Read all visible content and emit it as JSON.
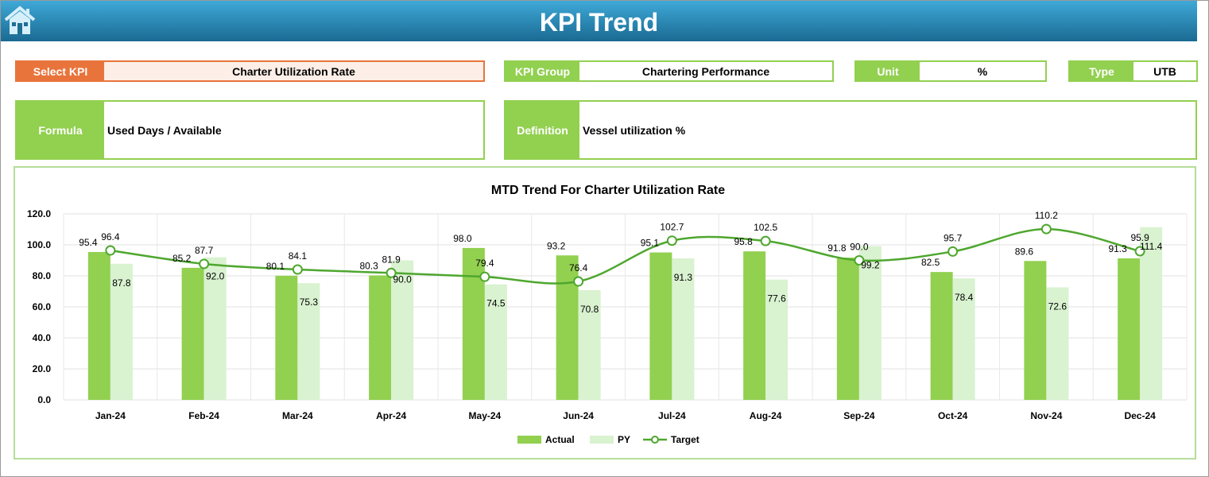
{
  "header": {
    "title": "KPI Trend",
    "home_icon": "home-icon"
  },
  "fields": {
    "select_kpi": {
      "label": "Select KPI",
      "value": "Charter Utilization Rate"
    },
    "kpi_group": {
      "label": "KPI Group",
      "value": "Chartering Performance"
    },
    "unit": {
      "label": "Unit",
      "value": "%"
    },
    "type": {
      "label": "Type",
      "value": "UTB"
    },
    "formula": {
      "label": "Formula",
      "value": "Used Days / Available"
    },
    "definition": {
      "label": "Definition",
      "value": "Vessel utilization %"
    }
  },
  "chart_data": {
    "type": "bar",
    "title": "MTD Trend For Charter Utilization Rate",
    "categories": [
      "Jan-24",
      "Feb-24",
      "Mar-24",
      "Apr-24",
      "May-24",
      "Jun-24",
      "Jul-24",
      "Aug-24",
      "Sep-24",
      "Oct-24",
      "Nov-24",
      "Dec-24"
    ],
    "ylim": [
      0,
      120
    ],
    "yticks": [
      "0.0",
      "20.0",
      "40.0",
      "60.0",
      "80.0",
      "100.0",
      "120.0"
    ],
    "grid": true,
    "legend": "bottom",
    "series": [
      {
        "name": "Actual",
        "type": "bar",
        "color": "#92d050",
        "values": [
          95.4,
          85.2,
          80.1,
          80.3,
          98.0,
          93.2,
          95.1,
          95.8,
          91.8,
          82.5,
          89.6,
          91.3
        ]
      },
      {
        "name": "PY",
        "type": "bar",
        "color": "#d9f2d0",
        "values": [
          87.8,
          92.0,
          75.3,
          90.0,
          74.5,
          70.8,
          91.3,
          77.6,
          99.2,
          78.4,
          72.6,
          111.4
        ]
      },
      {
        "name": "Target",
        "type": "line",
        "color": "#4ea72e",
        "values": [
          96.4,
          87.7,
          84.1,
          81.9,
          79.4,
          76.4,
          102.7,
          102.5,
          90.0,
          95.7,
          110.2,
          95.9
        ]
      }
    ]
  }
}
